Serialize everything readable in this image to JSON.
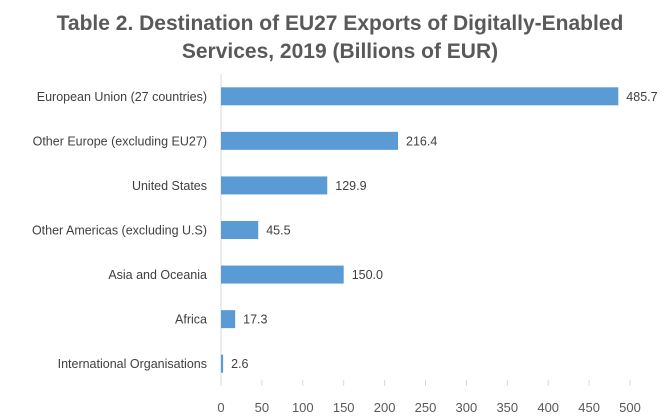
{
  "chart_data": {
    "type": "bar",
    "orientation": "horizontal",
    "title_lines": [
      "Table 2. Destination of EU27 Exports of Digitally-Enabled",
      "Services, 2019  (Billions of EUR)"
    ],
    "categories": [
      "European Union (27 countries)",
      "Other Europe (excluding EU27)",
      "United States",
      "Other Americas (excluding U.S)",
      "Asia and Oceania",
      "Africa",
      "International Organisations"
    ],
    "values": [
      485.7,
      216.4,
      129.9,
      45.5,
      150.0,
      17.3,
      2.6
    ],
    "value_labels": [
      "485.7",
      "216.4",
      "129.9",
      "45.5",
      "150.0",
      "17.3",
      "2.6"
    ],
    "xlim": [
      0,
      500
    ],
    "xticks": [
      "0",
      "50",
      "100",
      "150",
      "200",
      "250",
      "300",
      "350",
      "400",
      "450",
      "500"
    ],
    "grid": false,
    "legend": "none",
    "bar_color": "#5B9BD5"
  }
}
